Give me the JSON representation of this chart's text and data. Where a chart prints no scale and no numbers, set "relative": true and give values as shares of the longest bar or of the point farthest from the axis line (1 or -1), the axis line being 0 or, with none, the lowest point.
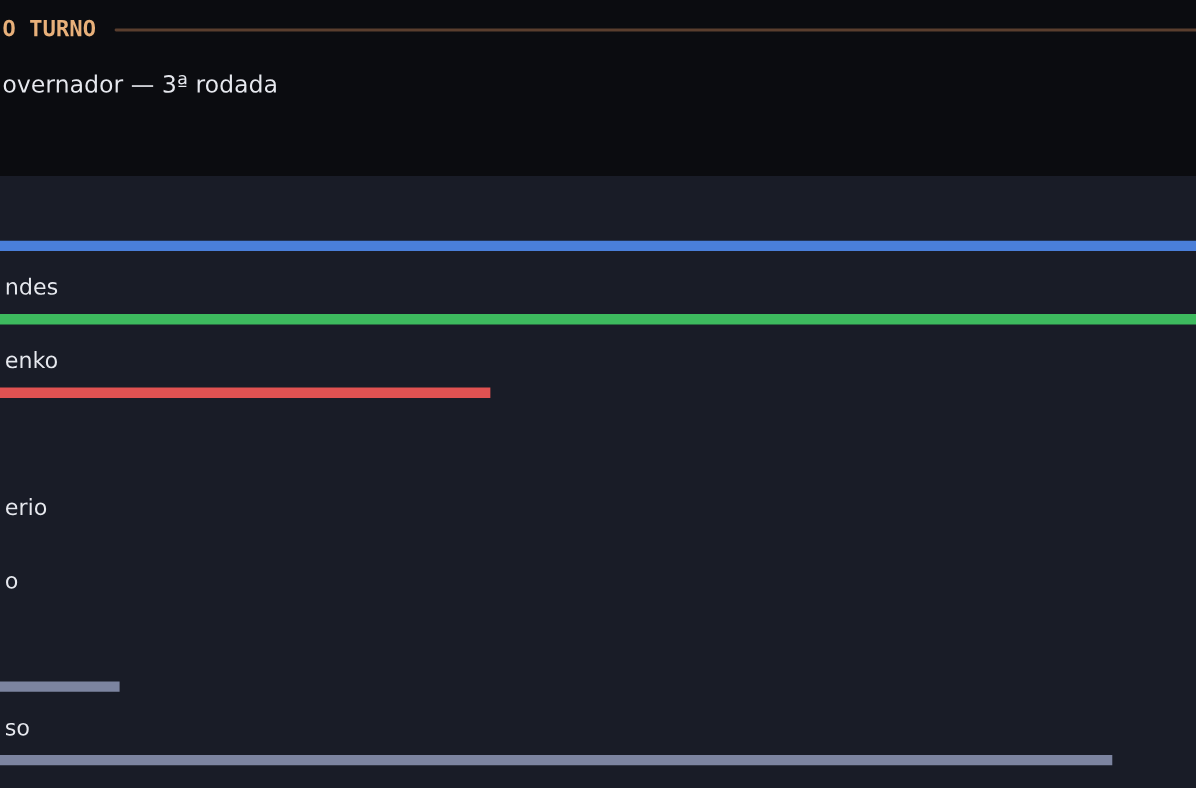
{
  "chart_data": {
    "type": "bar",
    "orientation": "horizontal",
    "relative": true,
    "title": "O TURNO",
    "subtitle": "overnador — 3ª rodada",
    "categories": [
      null,
      "ndes",
      "enko",
      null,
      "erio",
      "o",
      null,
      "so"
    ],
    "values": [
      1,
      1,
      0.41,
      0,
      0,
      0,
      0.1,
      0.93
    ],
    "colors": [
      "#4a7fd9",
      "#3dba5e",
      "#e05252",
      "#7c84a0",
      "#7c84a0",
      "#7c84a0",
      "#7c84a0",
      "#7c84a0"
    ]
  }
}
